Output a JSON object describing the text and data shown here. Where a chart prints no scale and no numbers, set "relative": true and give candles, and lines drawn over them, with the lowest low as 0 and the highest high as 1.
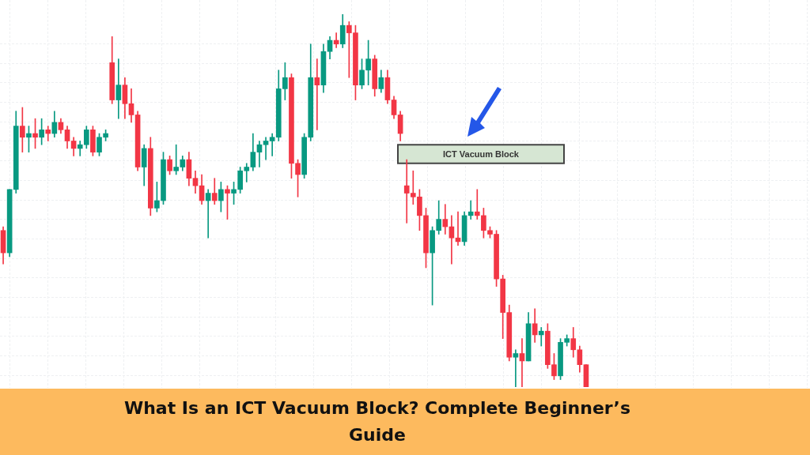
{
  "chart_data": {
    "type": "candlestick",
    "title": "What Is an ICT Vacuum Block? Complete Beginner’s Guide",
    "relative": true,
    "grid": true,
    "categories": [
      null,
      null,
      null,
      null,
      null,
      null,
      null,
      null,
      null,
      null,
      null,
      null,
      null,
      null,
      null,
      null,
      null,
      null,
      null,
      null,
      null,
      null,
      null,
      null,
      null,
      null,
      null,
      null,
      null,
      null,
      null,
      null,
      null,
      null,
      null,
      null,
      null,
      null,
      null,
      null,
      null,
      null,
      null,
      null,
      null,
      null,
      null,
      null,
      null,
      null,
      null,
      null,
      null,
      null,
      null,
      null,
      null,
      null,
      null,
      null,
      null,
      null,
      null,
      null,
      null,
      null,
      null,
      null,
      null,
      null,
      null,
      null,
      null,
      null,
      null,
      null,
      null,
      null,
      null,
      null,
      null,
      null,
      null,
      null,
      null,
      null,
      null,
      null,
      null,
      null,
      null,
      null
    ],
    "ohlc": [
      [
        0.42,
        0.43,
        0.33,
        0.36
      ],
      [
        0.36,
        0.53,
        0.35,
        0.53
      ],
      [
        0.53,
        0.74,
        0.52,
        0.7
      ],
      [
        0.7,
        0.75,
        0.63,
        0.67
      ],
      [
        0.67,
        0.7,
        0.63,
        0.68
      ],
      [
        0.68,
        0.72,
        0.64,
        0.67
      ],
      [
        0.67,
        0.72,
        0.65,
        0.69
      ],
      [
        0.69,
        0.7,
        0.66,
        0.68
      ],
      [
        0.68,
        0.74,
        0.67,
        0.71
      ],
      [
        0.71,
        0.72,
        0.68,
        0.69
      ],
      [
        0.69,
        0.7,
        0.64,
        0.66
      ],
      [
        0.66,
        0.67,
        0.62,
        0.64
      ],
      [
        0.64,
        0.66,
        0.62,
        0.65
      ],
      [
        0.65,
        0.7,
        0.64,
        0.69
      ],
      [
        0.69,
        0.7,
        0.62,
        0.63
      ],
      [
        0.63,
        0.68,
        0.62,
        0.67
      ],
      [
        0.67,
        0.69,
        0.66,
        0.68
      ],
      [
        0.87,
        0.94,
        0.76,
        0.77
      ],
      [
        0.77,
        0.88,
        0.72,
        0.81
      ],
      [
        0.81,
        0.83,
        0.72,
        0.76
      ],
      [
        0.76,
        0.8,
        0.71,
        0.73
      ],
      [
        0.73,
        0.74,
        0.58,
        0.59
      ],
      [
        0.59,
        0.65,
        0.54,
        0.64
      ],
      [
        0.64,
        0.67,
        0.46,
        0.48
      ],
      [
        0.48,
        0.55,
        0.47,
        0.5
      ],
      [
        0.5,
        0.63,
        0.49,
        0.61
      ],
      [
        0.61,
        0.62,
        0.57,
        0.58
      ],
      [
        0.58,
        0.65,
        0.57,
        0.59
      ],
      [
        0.59,
        0.62,
        0.58,
        0.61
      ],
      [
        0.61,
        0.63,
        0.54,
        0.56
      ],
      [
        0.56,
        0.58,
        0.52,
        0.54
      ],
      [
        0.54,
        0.57,
        0.49,
        0.5
      ],
      [
        0.5,
        0.53,
        0.4,
        0.52
      ],
      [
        0.52,
        0.56,
        0.49,
        0.5
      ],
      [
        0.5,
        0.55,
        0.47,
        0.53
      ],
      [
        0.53,
        0.54,
        0.45,
        0.52
      ],
      [
        0.52,
        0.55,
        0.49,
        0.53
      ],
      [
        0.53,
        0.59,
        0.52,
        0.58
      ],
      [
        0.58,
        0.6,
        0.55,
        0.59
      ],
      [
        0.59,
        0.68,
        0.58,
        0.63
      ],
      [
        0.63,
        0.66,
        0.59,
        0.65
      ],
      [
        0.65,
        0.67,
        0.61,
        0.66
      ],
      [
        0.66,
        0.68,
        0.62,
        0.67
      ],
      [
        0.67,
        0.85,
        0.66,
        0.8
      ],
      [
        0.8,
        0.87,
        0.77,
        0.83
      ],
      [
        0.83,
        0.84,
        0.56,
        0.6
      ],
      [
        0.6,
        0.61,
        0.51,
        0.57
      ],
      [
        0.57,
        0.68,
        0.56,
        0.67
      ],
      [
        0.67,
        0.92,
        0.66,
        0.83
      ],
      [
        0.83,
        0.88,
        0.69,
        0.81
      ],
      [
        0.81,
        0.92,
        0.79,
        0.9
      ],
      [
        0.9,
        0.94,
        0.88,
        0.93
      ],
      [
        0.93,
        0.95,
        0.91,
        0.92
      ],
      [
        0.92,
        1.0,
        0.91,
        0.97
      ],
      [
        0.97,
        0.98,
        0.83,
        0.95
      ],
      [
        0.95,
        0.97,
        0.77,
        0.81
      ],
      [
        0.81,
        0.88,
        0.8,
        0.85
      ],
      [
        0.85,
        0.93,
        0.81,
        0.88
      ],
      [
        0.88,
        0.89,
        0.78,
        0.8
      ],
      [
        0.8,
        0.85,
        0.79,
        0.83
      ],
      [
        0.83,
        0.85,
        0.76,
        0.77
      ],
      [
        0.77,
        0.78,
        0.72,
        0.73
      ],
      [
        0.73,
        0.74,
        0.66,
        0.68
      ],
      [
        0.54,
        0.61,
        0.44,
        0.52
      ],
      [
        0.52,
        0.58,
        0.49,
        0.51
      ],
      [
        0.51,
        0.53,
        0.42,
        0.46
      ],
      [
        0.46,
        0.48,
        0.32,
        0.36
      ],
      [
        0.36,
        0.43,
        0.22,
        0.42
      ],
      [
        0.42,
        0.5,
        0.41,
        0.45
      ],
      [
        0.45,
        0.49,
        0.41,
        0.43
      ],
      [
        0.43,
        0.46,
        0.33,
        0.4
      ],
      [
        0.4,
        0.47,
        0.38,
        0.39
      ],
      [
        0.39,
        0.47,
        0.38,
        0.46
      ],
      [
        0.46,
        0.5,
        0.45,
        0.47
      ],
      [
        0.47,
        0.53,
        0.45,
        0.46
      ],
      [
        0.46,
        0.48,
        0.4,
        0.42
      ],
      [
        0.42,
        0.43,
        0.4,
        0.41
      ],
      [
        0.41,
        0.42,
        0.27,
        0.29
      ],
      [
        0.29,
        0.3,
        0.13,
        0.2
      ],
      [
        0.2,
        0.22,
        0.07,
        0.08
      ],
      [
        0.08,
        0.1,
        0,
        0.09
      ],
      [
        0.09,
        0.13,
        0,
        0.07
      ],
      [
        0.07,
        0.2,
        0.07,
        0.17
      ],
      [
        0.17,
        0.21,
        0.12,
        0.14
      ],
      [
        0.14,
        0.16,
        0.11,
        0.15
      ],
      [
        0.15,
        0.17,
        0.05,
        0.06
      ],
      [
        0.06,
        0.09,
        0.02,
        0.03
      ],
      [
        0.03,
        0.13,
        0.02,
        0.12
      ],
      [
        0.12,
        0.14,
        0.11,
        0.13
      ],
      [
        0.13,
        0.16,
        0.08,
        0.1
      ],
      [
        0.1,
        0.11,
        0.04,
        0.06
      ],
      [
        0.06,
        0.06,
        0,
        0
      ]
    ],
    "colors": [
      "#f23645",
      "#089981",
      "#089981",
      "#f23645",
      "#089981",
      "#f23645",
      "#089981",
      "#f23645",
      "#089981",
      "#f23645",
      "#f23645",
      "#f23645",
      "#089981",
      "#089981",
      "#f23645",
      "#089981",
      "#089981",
      "#f23645",
      "#089981",
      "#f23645",
      "#f23645",
      "#f23645",
      "#089981",
      "#f23645",
      "#089981",
      "#089981",
      "#f23645",
      "#089981",
      "#089981",
      "#f23645",
      "#f23645",
      "#f23645",
      "#089981",
      "#f23645",
      "#089981",
      "#f23645",
      "#089981",
      "#089981",
      "#089981",
      "#089981",
      "#089981",
      "#089981",
      "#089981",
      "#089981",
      "#089981",
      "#f23645",
      "#f23645",
      "#089981",
      "#089981",
      "#f23645",
      "#089981",
      "#089981",
      "#f23645",
      "#089981",
      "#f23645",
      "#f23645",
      "#089981",
      "#089981",
      "#f23645",
      "#089981",
      "#f23645",
      "#f23645",
      "#f23645",
      "#f23645",
      "#f23645",
      "#f23645",
      "#f23645",
      "#089981",
      "#089981",
      "#f23645",
      "#f23645",
      "#f23645",
      "#089981",
      "#089981",
      "#f23645",
      "#f23645",
      "#f23645",
      "#f23645",
      "#f23645",
      "#f23645",
      "#089981",
      "#f23645",
      "#089981",
      "#f23645",
      "#089981",
      "#f23645",
      "#f23645",
      "#089981",
      "#089981",
      "#f23645",
      "#f23645",
      "#f23645"
    ],
    "bands": [
      {
        "axis": "y",
        "from": 0.6,
        "to": 0.65,
        "label": "ICT Vacuum Block",
        "color": "#d6e6d3"
      }
    ]
  }
}
